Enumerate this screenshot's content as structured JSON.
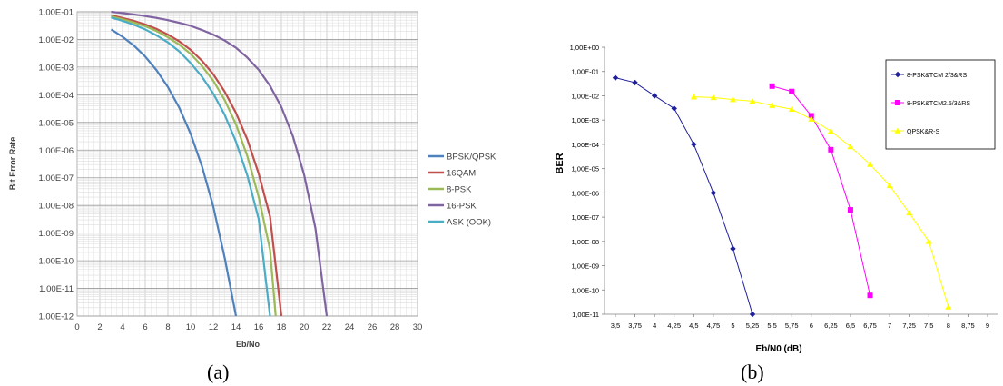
{
  "figure": {
    "caption_a": "(a)",
    "caption_b": "(b)"
  },
  "chart_data": [
    {
      "type": "line",
      "title": "",
      "xlabel": "Eb/No",
      "ylabel": "Bit Error Rate",
      "y_scale": "log",
      "xlim": [
        0,
        30
      ],
      "ylim": [
        1e-12,
        0.1
      ],
      "grid": true,
      "legend_position": "right",
      "x_ticks": [
        "0",
        "2",
        "4",
        "6",
        "8",
        "10",
        "12",
        "14",
        "16",
        "18",
        "20",
        "22",
        "24",
        "26",
        "28",
        "30"
      ],
      "y_ticks": [
        "1.00E-01",
        "1.00E-02",
        "1.00E-03",
        "1.00E-04",
        "1.00E-05",
        "1.00E-06",
        "1.00E-07",
        "1.00E-08",
        "1.00E-09",
        "1.00E-10",
        "1.00E-11",
        "1.00E-12"
      ],
      "series": [
        {
          "name": "BPSK/QPSK",
          "color": "#4f81bd",
          "x": [
            3,
            4,
            5,
            6,
            7,
            8,
            9,
            10,
            11,
            12,
            13,
            14
          ],
          "y": [
            0.023,
            0.0125,
            0.006,
            0.0024,
            0.00077,
            0.00019,
            3.4e-05,
            3.9e-06,
            2.6e-07,
            9e-09,
            1.3e-10,
            1e-12
          ]
        },
        {
          "name": "16QAM",
          "color": "#c0504d",
          "x": [
            3,
            4,
            5,
            6,
            7,
            8,
            9,
            10,
            11,
            12,
            13,
            14,
            15,
            16,
            17,
            18
          ],
          "y": [
            0.075,
            0.06,
            0.047,
            0.035,
            0.024,
            0.015,
            0.0085,
            0.0042,
            0.0017,
            0.00055,
            0.00013,
            2.2e-05,
            2.4e-06,
            1.4e-07,
            4e-09,
            1e-12
          ]
        },
        {
          "name": "8-PSK",
          "color": "#9bbb59",
          "x": [
            3,
            4,
            5,
            6,
            7,
            8,
            9,
            10,
            11,
            12,
            13,
            14,
            15,
            16,
            17,
            17.5
          ],
          "y": [
            0.068,
            0.054,
            0.041,
            0.03,
            0.02,
            0.012,
            0.0065,
            0.003,
            0.0011,
            0.00032,
            6.5e-05,
            8.5e-06,
            6e-07,
            2e-08,
            2.5e-10,
            1e-12
          ]
        },
        {
          "name": "16-PSK",
          "color": "#8064a2",
          "x": [
            3,
            4,
            5,
            6,
            7,
            8,
            9,
            10,
            11,
            12,
            13,
            14,
            15,
            16,
            17,
            18,
            19,
            20,
            21,
            22
          ],
          "y": [
            0.1,
            0.09,
            0.08,
            0.07,
            0.06,
            0.05,
            0.04,
            0.031,
            0.022,
            0.015,
            0.0092,
            0.005,
            0.0022,
            0.0008,
            0.00021,
            3.6e-05,
            3.3e-06,
            1.3e-07,
            1.5e-09,
            1e-12
          ]
        },
        {
          "name": "ASK (OOK)",
          "color": "#4bacc6",
          "x": [
            3,
            4,
            5,
            6,
            7,
            8,
            9,
            10,
            11,
            12,
            13,
            14,
            15,
            16,
            17
          ],
          "y": [
            0.062,
            0.047,
            0.034,
            0.023,
            0.014,
            0.0078,
            0.0037,
            0.0014,
            0.00045,
            0.00011,
            1.9e-05,
            2e-06,
            1.2e-07,
            3.2e-09,
            1e-12
          ]
        }
      ]
    },
    {
      "type": "line",
      "title": "",
      "xlabel": "Eb/N0 (dB)",
      "ylabel": "BER",
      "y_scale": "log",
      "xlim": [
        3.5,
        9
      ],
      "ylim": [
        1e-11,
        1
      ],
      "grid": false,
      "legend_position": "top-right",
      "x_ticks": [
        "3,5",
        "3,75",
        "4",
        "4,25",
        "4,5",
        "4,75",
        "5",
        "5,25",
        "5,5",
        "5,75",
        "6",
        "6,25",
        "6,5",
        "6,75",
        "7",
        "7,25",
        "7,5",
        "8",
        "8,75",
        "9"
      ],
      "y_ticks": [
        "1,00E+00",
        "1,00E-01",
        "1,00E-02",
        "1,00E-03",
        "1,00E-04",
        "1,00E-05",
        "1,00E-06",
        "1,00E-07",
        "1,00E-08",
        "1,00E-09",
        "1,00E-10",
        "1,00E-11"
      ],
      "series": [
        {
          "name": "8-PSK&TCM 2/3&RS",
          "color": "#1f1f9a",
          "marker": "diamond",
          "x": [
            "3,5",
            "3,75",
            "4",
            "4,25",
            "4,5",
            "4,75",
            "5",
            "5,25"
          ],
          "y": [
            0.055,
            0.035,
            0.01,
            0.003,
            0.0001,
            1e-06,
            5e-09,
            1e-11
          ]
        },
        {
          "name": "8-PSK&TCM2.5/3&RS",
          "color": "#ff00ff",
          "marker": "square",
          "x": [
            "5,5",
            "5,75",
            "6",
            "6,25",
            "6,5",
            "6,75"
          ],
          "y": [
            0.025,
            0.015,
            0.0015,
            6e-05,
            2e-07,
            6e-11
          ]
        },
        {
          "name": "QPSK&R-S",
          "color": "#ffff00",
          "marker": "triangle",
          "x": [
            "4,5",
            "4,75",
            "5",
            "5,25",
            "5,5",
            "5,75",
            "6",
            "6,25",
            "6,5",
            "6,75",
            "7",
            "7,25",
            "7,5",
            "8"
          ],
          "y": [
            0.009,
            0.0085,
            0.007,
            0.006,
            0.004,
            0.0028,
            0.0011,
            0.00035,
            8e-05,
            1.5e-05,
            2e-06,
            1.5e-07,
            1e-08,
            2e-11
          ]
        }
      ]
    }
  ]
}
